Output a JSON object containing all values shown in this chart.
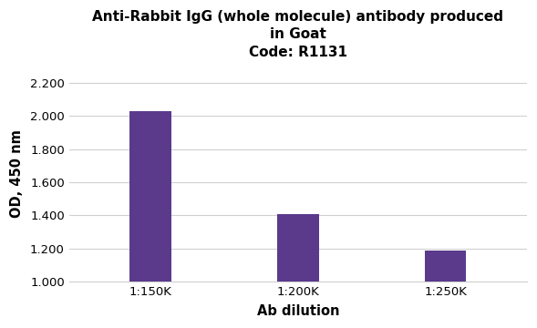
{
  "title_line1": "Anti-Rabbit IgG (whole molecule) antibody produced",
  "title_line2": "in Goat",
  "title_line3": "Code: R1131",
  "categories": [
    "1:150K",
    "1:200K",
    "1:250K"
  ],
  "values": [
    2.03,
    1.41,
    1.185
  ],
  "bar_color": "#5b3a8c",
  "xlabel": "Ab dilution",
  "ylabel": "OD, 450 nm",
  "ylim": [
    1.0,
    2.3
  ],
  "yticks": [
    1.0,
    1.2,
    1.4,
    1.6,
    1.8,
    2.0,
    2.2
  ],
  "ytick_labels": [
    "1.000",
    "1.200",
    "1.400",
    "1.600",
    "1.800",
    "2.000",
    "2.200"
  ],
  "background_color": "#ffffff",
  "grid_color": "#d0d0d0",
  "title_fontsize": 11,
  "axis_label_fontsize": 10.5,
  "tick_fontsize": 9.5,
  "bar_width": 0.28
}
